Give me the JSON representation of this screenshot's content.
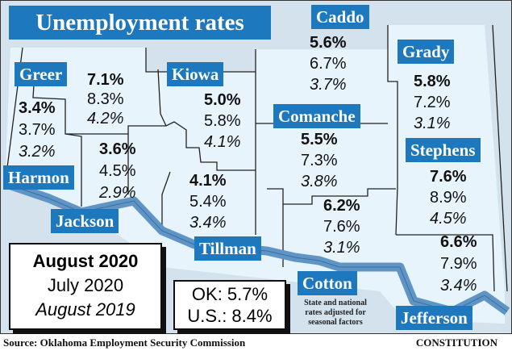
{
  "title": "Unemployment rates",
  "counties": [
    {
      "name": "Greer",
      "aug_2020": "7.1%",
      "jul_2020": "8.3%",
      "aug_2019": "4.2%"
    },
    {
      "name": "Harmon",
      "aug_2020": "3.4%",
      "jul_2020": "3.7%",
      "aug_2019": "3.2%"
    },
    {
      "name": "Jackson",
      "aug_2020": "3.6%",
      "jul_2020": "4.5%",
      "aug_2019": "2.9%"
    },
    {
      "name": "Kiowa",
      "aug_2020": "5.0%",
      "jul_2020": "5.8%",
      "aug_2019": "4.1%"
    },
    {
      "name": "Tillman",
      "aug_2020": "4.1%",
      "jul_2020": "5.4%",
      "aug_2019": "3.4%"
    },
    {
      "name": "Caddo",
      "aug_2020": "5.6%",
      "jul_2020": "6.7%",
      "aug_2019": "3.7%"
    },
    {
      "name": "Comanche",
      "aug_2020": "5.5%",
      "jul_2020": "7.3%",
      "aug_2019": "3.8%"
    },
    {
      "name": "Cotton",
      "aug_2020": "6.2%",
      "jul_2020": "7.6%",
      "aug_2019": "3.1%"
    },
    {
      "name": "Grady",
      "aug_2020": "5.8%",
      "jul_2020": "7.2%",
      "aug_2019": "3.1%"
    },
    {
      "name": "Stephens",
      "aug_2020": "7.6%",
      "jul_2020": "8.9%",
      "aug_2019": "4.5%"
    },
    {
      "name": "Jefferson",
      "aug_2020": "6.6%",
      "jul_2020": "7.9%",
      "aug_2019": "3.4%"
    }
  ],
  "legend": {
    "current": "August 2020",
    "previous_month": "July 2020",
    "previous_year": "August 2019"
  },
  "state_national": {
    "ok": "OK: 5.7%",
    "us": "U.S.: 8.4%"
  },
  "note": "State and national rates adjusted for seasonal factors",
  "source": "Source:  Oklahoma Employment  Security  Commission",
  "credit": "CONSTITUTION",
  "colors": {
    "label_bg": "#1d78bd",
    "county_fill": "#e8f4fb",
    "outside_fill": "#d3e2ec",
    "river": "#5f95c6"
  }
}
